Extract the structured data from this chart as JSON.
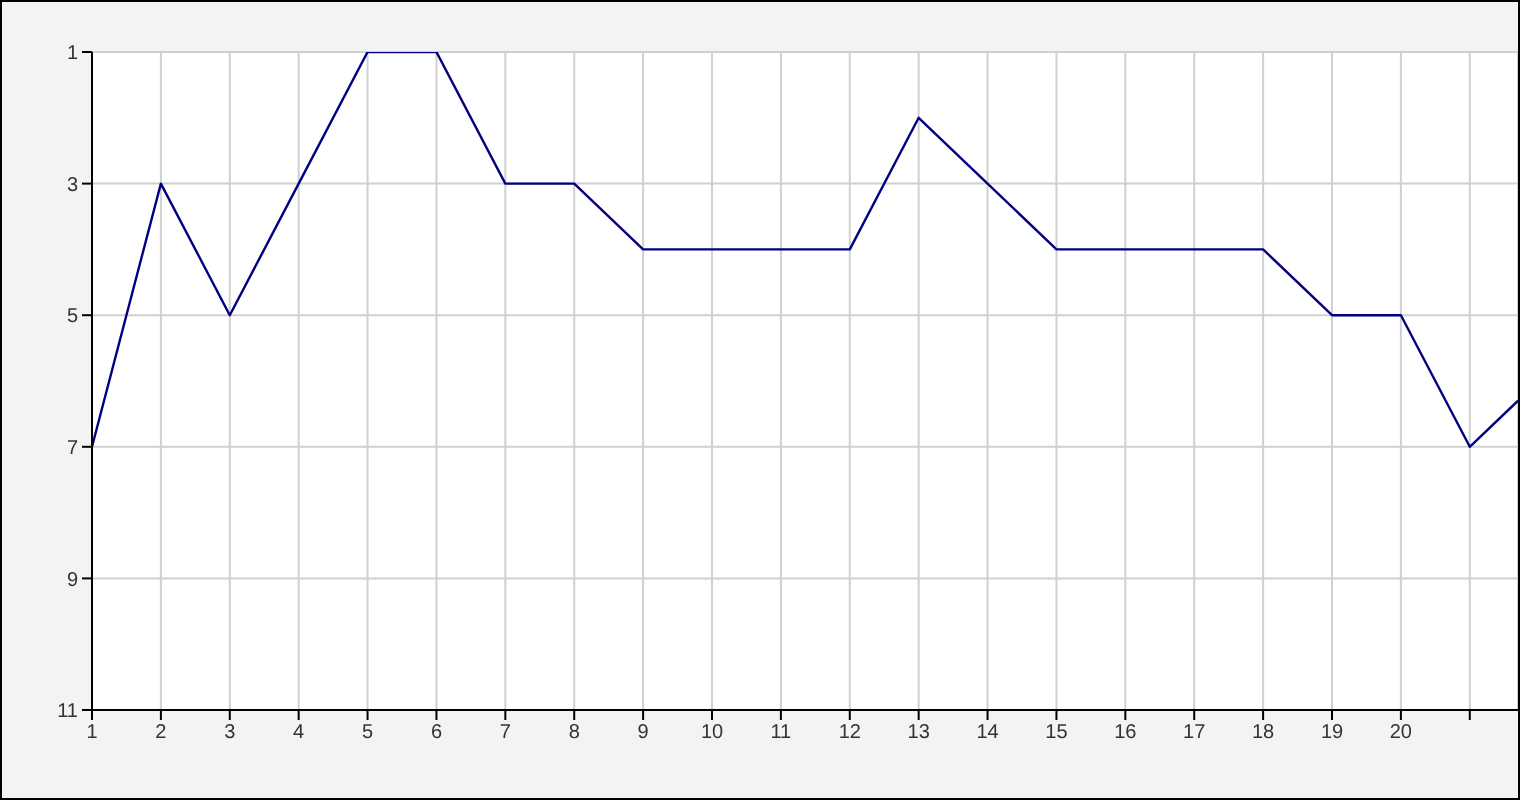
{
  "chart_data": {
    "type": "line",
    "x": [
      1,
      2,
      3,
      4,
      5,
      6,
      7,
      8,
      9,
      10,
      11,
      12,
      13,
      14,
      15,
      16,
      17,
      18,
      19,
      20,
      21,
      21.7
    ],
    "series": [
      {
        "color": "#000080",
        "values": [
          7,
          3,
          5,
          3,
          1,
          1,
          3,
          3,
          4,
          4,
          4,
          4,
          2,
          3,
          4,
          4,
          4,
          4,
          5,
          5,
          7,
          6.3
        ]
      }
    ],
    "xlim": [
      1,
      21.7
    ],
    "xticks": [
      1,
      2,
      3,
      4,
      5,
      6,
      7,
      8,
      9,
      10,
      11,
      12,
      13,
      14,
      15,
      16,
      17,
      18,
      19,
      20,
      {
        "value": 21,
        "label": null
      }
    ],
    "ylim": [
      11,
      1
    ],
    "yticks": [
      1,
      3,
      5,
      7,
      9,
      11
    ],
    "grid": true,
    "marker": "none",
    "line_style": "solid"
  }
}
